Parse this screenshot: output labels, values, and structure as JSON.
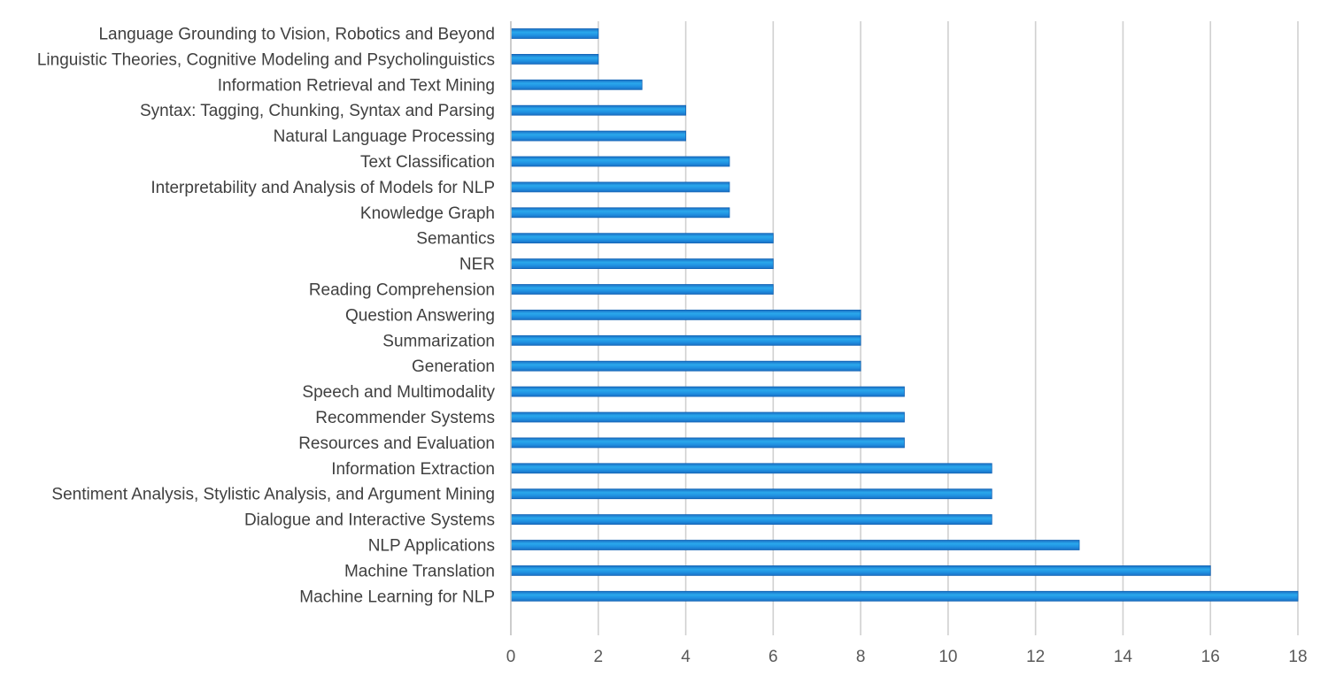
{
  "chart_data": {
    "type": "bar",
    "orientation": "horizontal",
    "title": "",
    "xlabel": "",
    "ylabel": "",
    "xlim": [
      0,
      18
    ],
    "xticks": [
      0,
      2,
      4,
      6,
      8,
      10,
      12,
      14,
      16,
      18
    ],
    "grid": true,
    "legend": "none",
    "categories": [
      "Language Grounding to Vision, Robotics and Beyond",
      "Linguistic Theories, Cognitive Modeling and Psycholinguistics",
      "Information Retrieval and Text Mining",
      "Syntax: Tagging, Chunking, Syntax and Parsing",
      "Natural Language Processing",
      "Text Classification",
      "Interpretability and Analysis of Models for NLP",
      "Knowledge Graph",
      "Semantics",
      "NER",
      "Reading Comprehension",
      "Question Answering",
      "Summarization",
      "Generation",
      "Speech and Multimodality",
      "Recommender Systems",
      "Resources and Evaluation",
      "Information Extraction",
      "Sentiment Analysis, Stylistic Analysis, and Argument Mining",
      "Dialogue and Interactive Systems",
      "NLP Applications",
      "Machine Translation",
      "Machine Learning for NLP"
    ],
    "values": [
      2,
      2,
      3,
      4,
      4,
      5,
      5,
      5,
      6,
      6,
      6,
      8,
      8,
      8,
      9,
      9,
      9,
      11,
      11,
      11,
      13,
      16,
      18
    ],
    "colors": {
      "bar_light": "#2aa8ec",
      "bar_mid": "#1f8fe0",
      "bar_dark": "#1a6fc4",
      "bar_edge": "#1565b5",
      "grid": "#d0d0d0",
      "axis": "#bfbfbf",
      "category_text": "#404040",
      "tick_text": "#595959"
    }
  }
}
